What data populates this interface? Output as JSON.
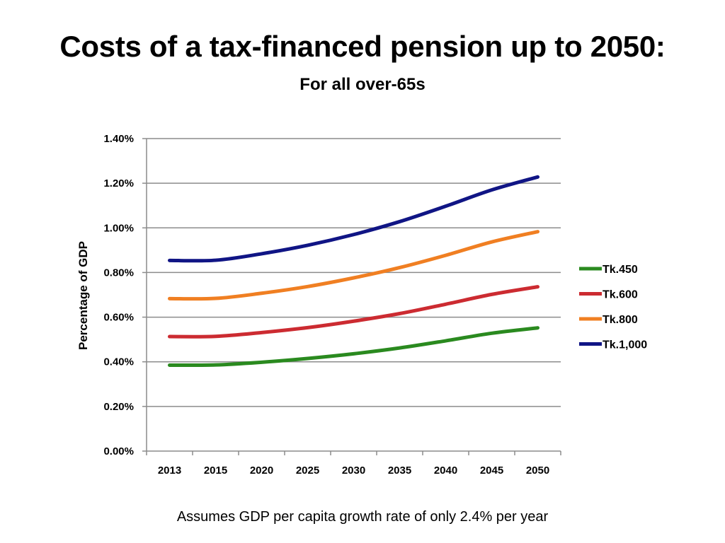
{
  "slide": {
    "title": "Costs of a tax-financed pension up to 2050:",
    "subtitle": "For all over-65s",
    "footnote": "Assumes GDP per capita growth rate of only 2.4% per year"
  },
  "chart_data": {
    "type": "line",
    "categories": [
      "2013",
      "2015",
      "2020",
      "2025",
      "2030",
      "2035",
      "2040",
      "2045",
      "2050"
    ],
    "ylabel": "Percentage of GDP",
    "xlabel": "",
    "ylim": [
      0,
      1.4
    ],
    "yticks": [
      "0.00%",
      "0.20%",
      "0.40%",
      "0.60%",
      "0.80%",
      "1.00%",
      "1.20%",
      "1.40%"
    ],
    "grid": true,
    "legend_position": "right",
    "series": [
      {
        "name": "Tk.450",
        "color": "#2a8a1f",
        "values": [
          0.385,
          0.386,
          0.398,
          0.415,
          0.436,
          0.462,
          0.494,
          0.528,
          0.552
        ]
      },
      {
        "name": "Tk.600",
        "color": "#cc2b31",
        "values": [
          0.513,
          0.514,
          0.531,
          0.553,
          0.582,
          0.616,
          0.658,
          0.702,
          0.736
        ]
      },
      {
        "name": "Tk.800",
        "color": "#f07f22",
        "values": [
          0.683,
          0.684,
          0.707,
          0.737,
          0.776,
          0.822,
          0.877,
          0.937,
          0.983
        ]
      },
      {
        "name": "Tk.1,000",
        "color": "#101585",
        "values": [
          0.854,
          0.855,
          0.884,
          0.922,
          0.97,
          1.028,
          1.097,
          1.17,
          1.228
        ]
      }
    ]
  }
}
